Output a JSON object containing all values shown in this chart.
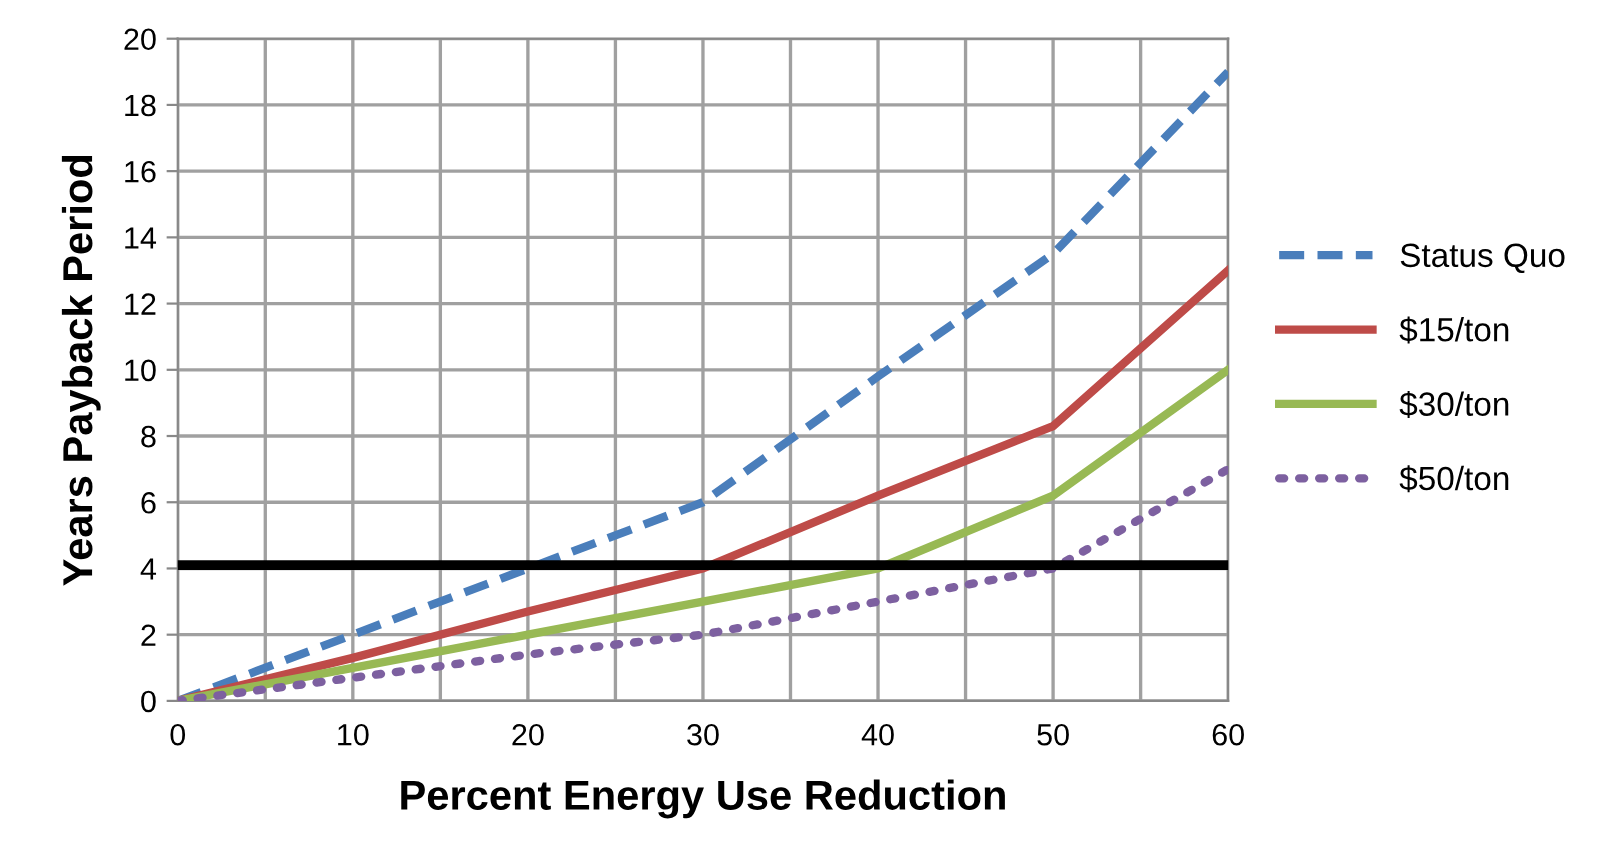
{
  "chart_data": {
    "type": "line",
    "xlabel": "Percent Energy Use Reduction",
    "ylabel": "Years Payback Period",
    "x": [
      0,
      10,
      20,
      30,
      40,
      50,
      60
    ],
    "series": [
      {
        "name": "Status Quo",
        "color": "#4a7ebb",
        "line_style": "dashed",
        "values": [
          0,
          2,
          4,
          6,
          9.8,
          13.5,
          19
        ]
      },
      {
        "name": "$15/ton",
        "color": "#be4b48",
        "line_style": "solid",
        "values": [
          0,
          1.3,
          2.7,
          4,
          6.2,
          8.3,
          13
        ]
      },
      {
        "name": "$30/ton",
        "color": "#98b954",
        "line_style": "solid",
        "values": [
          0,
          1,
          2,
          3,
          4,
          6.2,
          10
        ]
      },
      {
        "name": "$50/ton",
        "color": "#7d60a0",
        "line_style": "dotted",
        "values": [
          0,
          0.7,
          1.4,
          2,
          3,
          4,
          7
        ]
      }
    ],
    "ref_lines": [
      {
        "axis": "y",
        "value": 4.1,
        "color": "#000000"
      }
    ],
    "xlim": [
      0,
      60
    ],
    "ylim": [
      0,
      20
    ],
    "xticks": [
      0,
      {
        "value": 5,
        "label": null
      },
      10,
      {
        "value": 15,
        "label": null
      },
      20,
      {
        "value": 25,
        "label": null
      },
      30,
      {
        "value": 35,
        "label": null
      },
      40,
      {
        "value": 45,
        "label": null
      },
      50,
      {
        "value": 55,
        "label": null
      },
      60
    ],
    "yticks": [
      0,
      2,
      4,
      6,
      8,
      10,
      12,
      14,
      16,
      18,
      20
    ],
    "grid": true,
    "legend": "right",
    "marker": "none"
  }
}
